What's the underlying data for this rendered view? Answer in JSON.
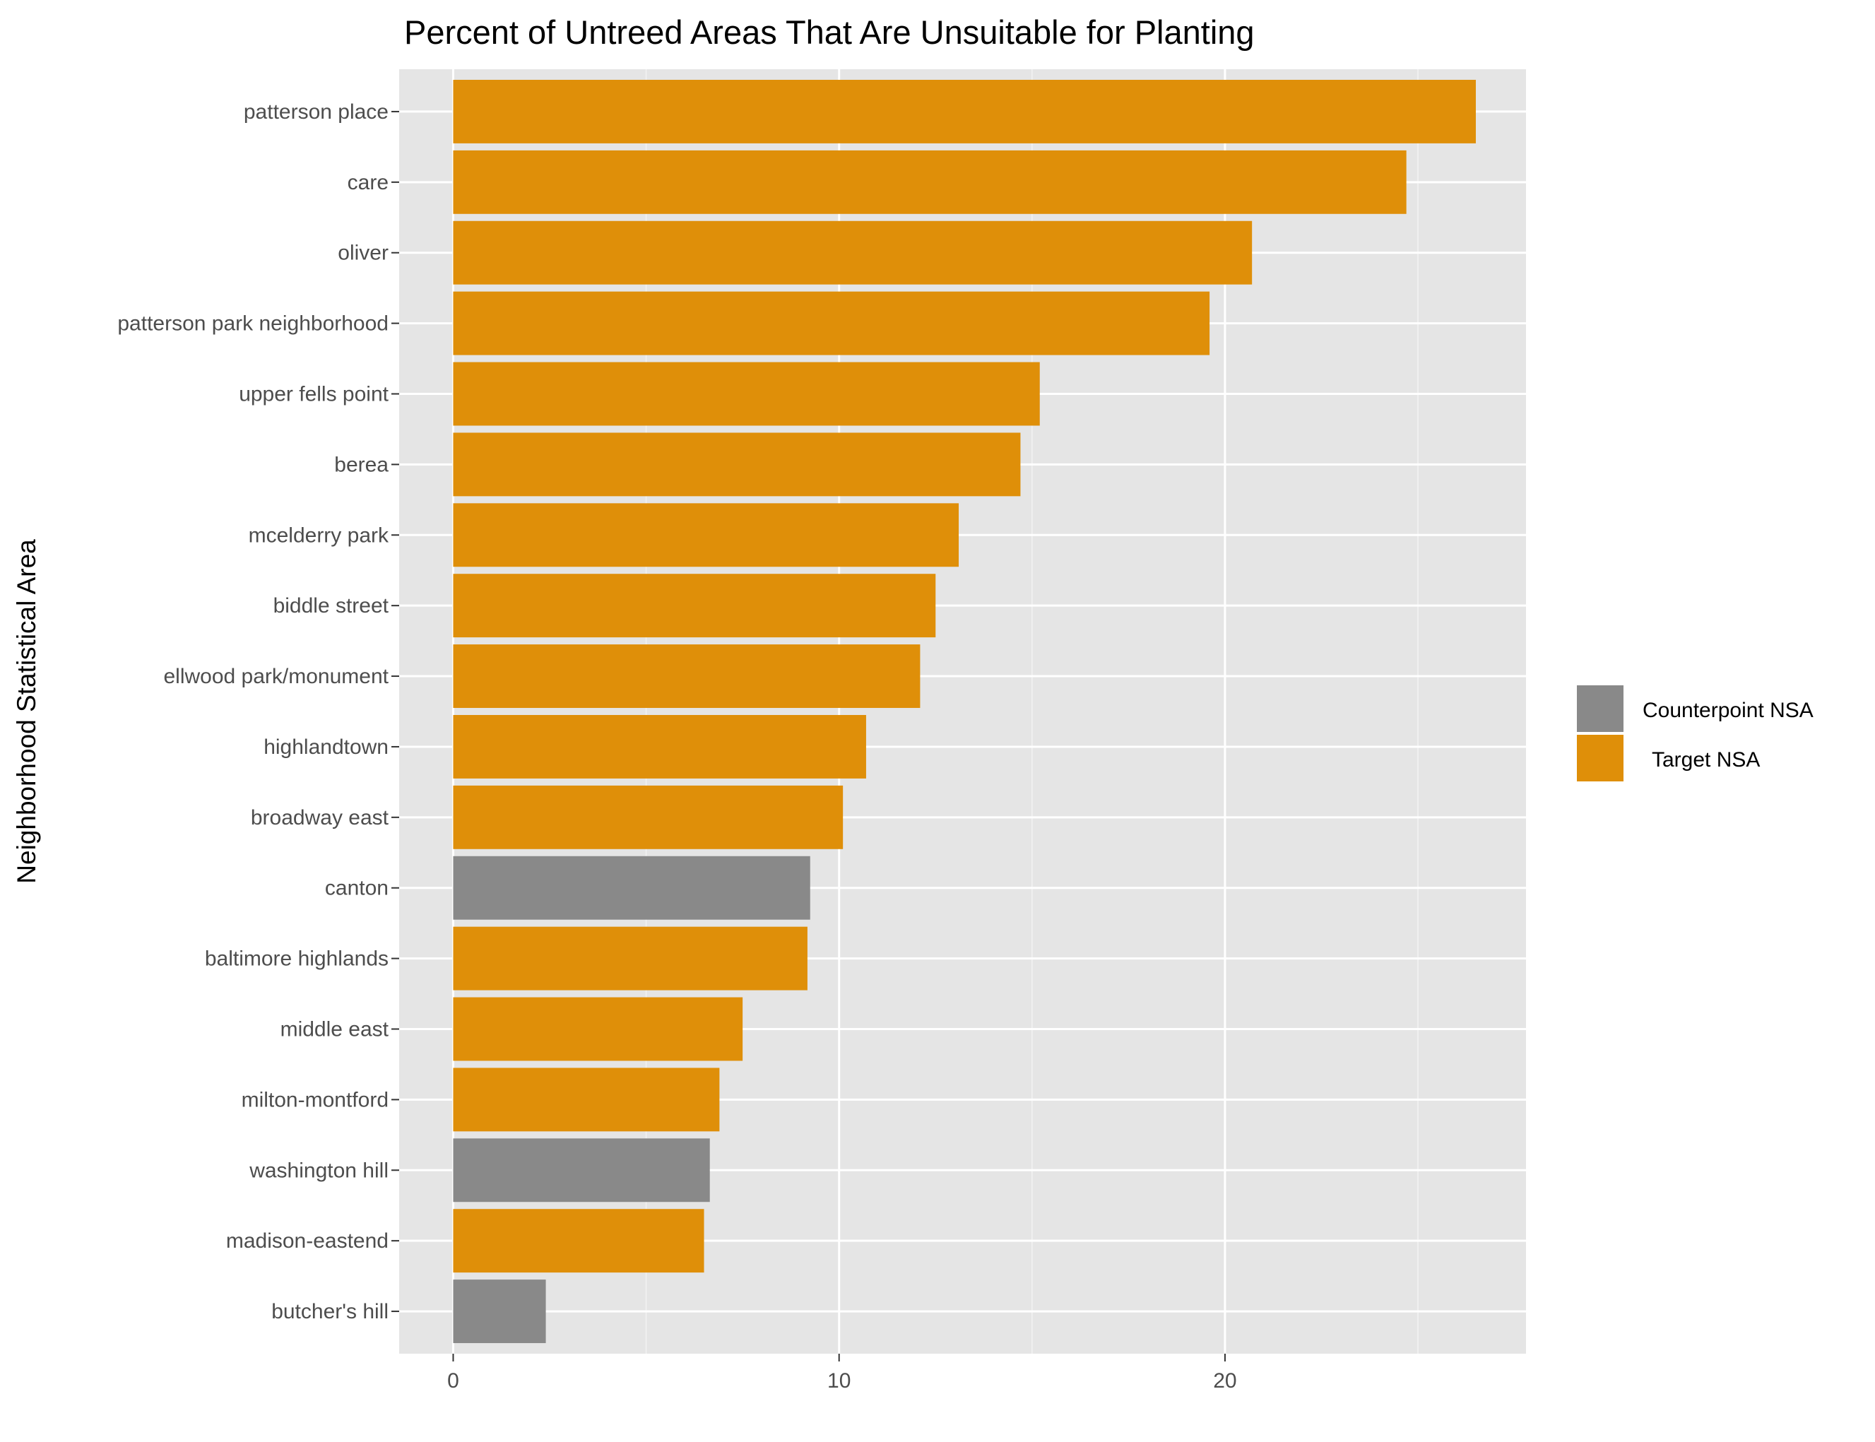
{
  "chart_data": {
    "type": "bar",
    "orientation": "horizontal",
    "title": "Percent of Untreed Areas That Are Unsuitable for Planting",
    "xlabel": "",
    "ylabel": "Neighborhood Statistical Area",
    "xlim": [
      -1.4,
      27.8
    ],
    "xticks": [
      0,
      10,
      20
    ],
    "xtick_labels": [
      "0",
      "10",
      "20"
    ],
    "grid": true,
    "legend": {
      "position": "right",
      "entries": [
        {
          "label": "Counterpoint NSA",
          "color": "#898989"
        },
        {
          "label": "Target NSA",
          "color": "#df8f09"
        }
      ]
    },
    "categories": [
      "patterson place",
      "care",
      "oliver",
      "patterson park neighborhood",
      "upper fells point",
      "berea",
      "mcelderry park",
      "biddle street",
      "ellwood park/monument",
      "highlandtown",
      "broadway east",
      "canton",
      "baltimore highlands",
      "middle east",
      "milton-montford",
      "washington hill",
      "madison-eastend",
      "butcher's hill"
    ],
    "values": [
      26.5,
      24.7,
      20.7,
      19.6,
      15.2,
      14.7,
      13.1,
      12.5,
      12.1,
      10.7,
      10.1,
      9.25,
      9.18,
      7.5,
      6.9,
      6.65,
      6.5,
      2.4
    ],
    "groups": [
      "Target NSA",
      "Target NSA",
      "Target NSA",
      "Target NSA",
      "Target NSA",
      "Target NSA",
      "Target NSA",
      "Target NSA",
      "Target NSA",
      "Target NSA",
      "Target NSA",
      "Counterpoint NSA",
      "Target NSA",
      "Target NSA",
      "Target NSA",
      "Counterpoint NSA",
      "Target NSA",
      "Counterpoint NSA"
    ]
  }
}
